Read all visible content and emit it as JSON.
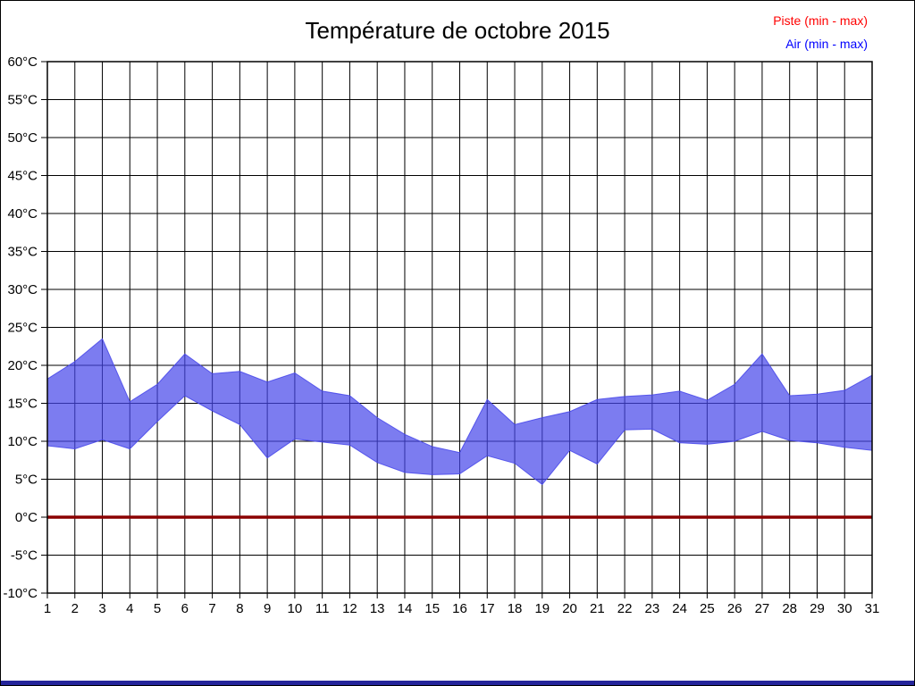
{
  "title": "Température de octobre 2015",
  "legend": {
    "position": "top-right",
    "items": [
      {
        "label": "Piste (min - max)",
        "color": "#ff0000"
      },
      {
        "label": "Air (min - max)",
        "color": "#0000ff"
      }
    ]
  },
  "chart_data": {
    "type": "area",
    "title": "Température de octobre 2015",
    "xlabel": "",
    "ylabel": "",
    "grid": true,
    "ylim": [
      -10,
      60
    ],
    "y_ticks": [
      60,
      55,
      50,
      45,
      40,
      35,
      30,
      25,
      20,
      15,
      10,
      5,
      0,
      -5,
      -10
    ],
    "y_tick_labels": [
      "60°C",
      "55°C",
      "50°C",
      "45°C",
      "40°C",
      "35°C",
      "30°C",
      "25°C",
      "20°C",
      "15°C",
      "10°C",
      "5°C",
      "0°C",
      "-5°C",
      "-10°C"
    ],
    "x": [
      1,
      2,
      3,
      4,
      5,
      6,
      7,
      8,
      9,
      10,
      11,
      12,
      13,
      14,
      15,
      16,
      17,
      18,
      19,
      20,
      21,
      22,
      23,
      24,
      25,
      26,
      27,
      28,
      29,
      30,
      31
    ],
    "x_tick_labels": [
      "1",
      "2",
      "3",
      "4",
      "5",
      "6",
      "7",
      "8",
      "9",
      "10",
      "11",
      "12",
      "13",
      "14",
      "15",
      "16",
      "17",
      "18",
      "19",
      "20",
      "21",
      "22",
      "23",
      "24",
      "25",
      "26",
      "27",
      "28",
      "29",
      "30",
      "31"
    ],
    "series": [
      {
        "name": "Piste (min - max)",
        "style": "line",
        "color": "#8b0000",
        "min": [
          0,
          0,
          0,
          0,
          0,
          0,
          0,
          0,
          0,
          0,
          0,
          0,
          0,
          0,
          0,
          0,
          0,
          0,
          0,
          0,
          0,
          0,
          0,
          0,
          0,
          0,
          0,
          0,
          0,
          0,
          0
        ],
        "max": [
          0,
          0,
          0,
          0,
          0,
          0,
          0,
          0,
          0,
          0,
          0,
          0,
          0,
          0,
          0,
          0,
          0,
          0,
          0,
          0,
          0,
          0,
          0,
          0,
          0,
          0,
          0,
          0,
          0,
          0,
          0
        ]
      },
      {
        "name": "Air (min - max)",
        "style": "band",
        "color": "#4545ea",
        "min": [
          9.4,
          9.0,
          10.2,
          9.0,
          12.6,
          16.0,
          14.0,
          12.2,
          7.8,
          10.3,
          9.9,
          9.5,
          7.2,
          5.9,
          5.6,
          5.7,
          8.1,
          7.1,
          4.3,
          8.8,
          7.0,
          11.5,
          11.6,
          9.8,
          9.6,
          10.0,
          11.3,
          10.1,
          9.8,
          9.2,
          8.8
        ],
        "max": [
          18.2,
          20.5,
          23.5,
          15.2,
          17.5,
          21.5,
          18.9,
          19.2,
          17.8,
          19.0,
          16.6,
          16.0,
          13.1,
          10.9,
          9.3,
          8.5,
          15.5,
          12.2,
          13.1,
          13.9,
          15.5,
          15.9,
          16.1,
          16.6,
          15.4,
          17.5,
          21.5,
          16.0,
          16.2,
          16.7,
          18.7
        ]
      }
    ]
  },
  "colors": {
    "grid": "#000000",
    "axis_text": "#000000",
    "plot_border": "#000000",
    "bottom_bar": "#24249a",
    "band_fill": "#4545ea",
    "zero_line": "#8b0000"
  }
}
